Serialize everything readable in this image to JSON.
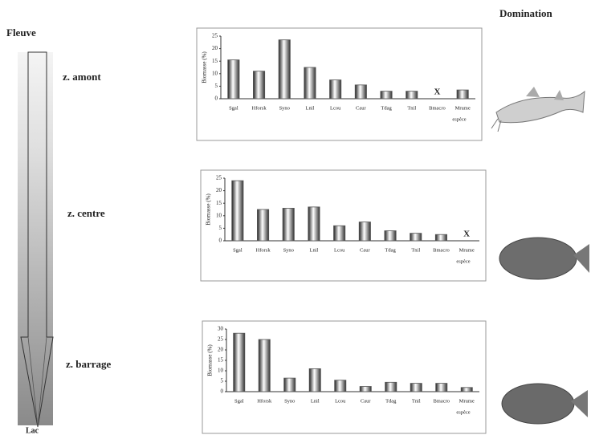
{
  "header": {
    "left_title": "Fleuve",
    "right_title": "Domination"
  },
  "zones": [
    "z. amont",
    "z. centre",
    "z. barrage"
  ],
  "river_end": "Lac",
  "chart_data": [
    {
      "type": "bar",
      "y_label": "Biomasse (%)",
      "x_label": "espèce",
      "color": "#555555",
      "categories": [
        "Sgal",
        "Hforsk",
        "Syno",
        "Lnil",
        "Lcou",
        "Caur",
        "Tdag",
        "Tnil",
        "Bmacro",
        "Mrume"
      ],
      "values": [
        15.5,
        11,
        23.5,
        12.5,
        7.5,
        5.5,
        3,
        3,
        null,
        3.5
      ],
      "annotations": [
        {
          "text": "X",
          "category": 8
        }
      ],
      "ylim": [
        0,
        25
      ],
      "yticks": [
        0,
        5,
        10,
        15,
        20,
        25
      ]
    },
    {
      "type": "bar",
      "y_label": "Biomasse (%)",
      "x_label": "espèce",
      "color": "#555555",
      "categories": [
        "Sgal",
        "Hforsk",
        "Syno",
        "Lnil",
        "Lcou",
        "Caur",
        "Tdag",
        "Tnil",
        "Bmacro",
        "Mrume"
      ],
      "values": [
        24,
        12.5,
        13,
        13.5,
        6,
        7.5,
        4,
        3,
        2.5,
        null
      ],
      "annotations": [
        {
          "text": "X",
          "category": 9
        }
      ],
      "ylim": [
        0,
        25
      ],
      "yticks": [
        0,
        5,
        10,
        15,
        20,
        25
      ]
    },
    {
      "type": "bar",
      "y_label": "Biomasse (%)",
      "x_label": "espèce",
      "color": "#555555",
      "categories": [
        "Sgal",
        "Hforsk",
        "Syno",
        "Lnil",
        "Lcou",
        "Caur",
        "Tdag",
        "Tnil",
        "Bmacro",
        "Mrume"
      ],
      "values": [
        28,
        25,
        6.5,
        11,
        5.5,
        2.5,
        4.5,
        4,
        4,
        2
      ],
      "annotations": [],
      "ylim": [
        0,
        30
      ],
      "yticks": [
        0,
        5,
        10,
        15,
        20,
        25,
        30
      ]
    }
  ]
}
